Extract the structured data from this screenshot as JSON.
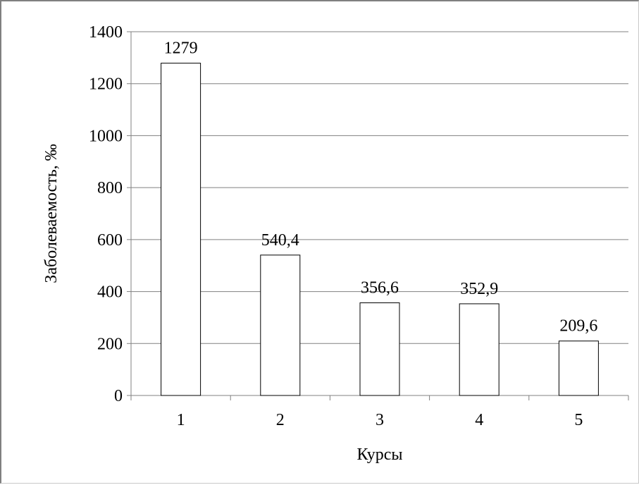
{
  "chart_data": {
    "type": "bar",
    "categories": [
      "1",
      "2",
      "3",
      "4",
      "5"
    ],
    "values": [
      1279,
      540.4,
      356.6,
      352.9,
      209.6
    ],
    "data_labels": [
      "1279",
      "540,4",
      "356,6",
      "352,9",
      "209,6"
    ],
    "title": "",
    "xlabel": "Курсы",
    "ylabel": "Заболеваемость, ‰",
    "ylim": [
      0,
      1400
    ],
    "yticks": [
      0,
      200,
      400,
      600,
      800,
      1000,
      1200,
      1400
    ],
    "ytick_labels": [
      "0",
      "200",
      "400",
      "600",
      "800",
      "1000",
      "1200",
      "1400"
    ],
    "grid": true,
    "legend": "none",
    "colors": {
      "bar_fill": "#ffffff",
      "bar_stroke": "#000000",
      "grid": "#808080",
      "axis": "#808080"
    }
  }
}
